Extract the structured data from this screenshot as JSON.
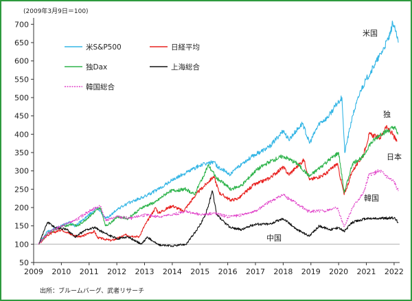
{
  "chart_data": {
    "type": "line",
    "base_note": "(2009年3月9日＝100)",
    "source": "出所：ブルームバーグ、武者リサーチ",
    "x_ticks": [
      "2009",
      "2010",
      "2011",
      "2012",
      "2013",
      "2014",
      "2015",
      "2016",
      "2017",
      "2018",
      "2019",
      "2020",
      "2021",
      "2022"
    ],
    "y_ticks": [
      "50",
      "100",
      "150",
      "200",
      "250",
      "300",
      "350",
      "400",
      "450",
      "500",
      "550",
      "600",
      "650",
      "700"
    ],
    "ylim": [
      50,
      710
    ],
    "xlim": [
      2009.0,
      2022.2
    ],
    "baseline": 100,
    "series": [
      {
        "name": "米S&P500",
        "label": "米国",
        "color": "#33b5e5",
        "dash": false,
        "points": [
          [
            2009.18,
            100
          ],
          [
            2009.5,
            135
          ],
          [
            2010.0,
            150
          ],
          [
            2010.3,
            160
          ],
          [
            2010.5,
            150
          ],
          [
            2011.0,
            180
          ],
          [
            2011.3,
            200
          ],
          [
            2011.6,
            170
          ],
          [
            2011.8,
            180
          ],
          [
            2012.0,
            195
          ],
          [
            2012.5,
            215
          ],
          [
            2013.0,
            230
          ],
          [
            2013.5,
            250
          ],
          [
            2014.0,
            275
          ],
          [
            2014.5,
            295
          ],
          [
            2015.0,
            315
          ],
          [
            2015.5,
            325
          ],
          [
            2015.65,
            310
          ],
          [
            2016.1,
            290
          ],
          [
            2016.5,
            320
          ],
          [
            2017.0,
            345
          ],
          [
            2017.5,
            365
          ],
          [
            2018.0,
            410
          ],
          [
            2018.2,
            385
          ],
          [
            2018.7,
            430
          ],
          [
            2018.95,
            375
          ],
          [
            2019.3,
            430
          ],
          [
            2019.6,
            445
          ],
          [
            2020.0,
            490
          ],
          [
            2020.12,
            500
          ],
          [
            2020.22,
            350
          ],
          [
            2020.5,
            450
          ],
          [
            2020.8,
            520
          ],
          [
            2021.0,
            550
          ],
          [
            2021.3,
            590
          ],
          [
            2021.6,
            630
          ],
          [
            2021.85,
            670
          ],
          [
            2021.95,
            705
          ],
          [
            2022.05,
            680
          ],
          [
            2022.15,
            650
          ]
        ]
      },
      {
        "name": "日経平均",
        "label": "日本",
        "color": "#e8201e",
        "dash": false,
        "points": [
          [
            2009.18,
            100
          ],
          [
            2009.5,
            125
          ],
          [
            2010.0,
            140
          ],
          [
            2010.4,
            125
          ],
          [
            2010.7,
            120
          ],
          [
            2011.0,
            130
          ],
          [
            2011.2,
            135
          ],
          [
            2011.3,
            118
          ],
          [
            2011.8,
            110
          ],
          [
            2012.0,
            115
          ],
          [
            2012.3,
            125
          ],
          [
            2012.8,
            120
          ],
          [
            2013.0,
            150
          ],
          [
            2013.4,
            200
          ],
          [
            2013.5,
            185
          ],
          [
            2014.0,
            205
          ],
          [
            2014.4,
            190
          ],
          [
            2014.9,
            240
          ],
          [
            2015.3,
            270
          ],
          [
            2015.5,
            285
          ],
          [
            2015.7,
            240
          ],
          [
            2016.1,
            220
          ],
          [
            2016.4,
            225
          ],
          [
            2016.9,
            260
          ],
          [
            2017.5,
            280
          ],
          [
            2018.0,
            310
          ],
          [
            2018.2,
            290
          ],
          [
            2018.75,
            330
          ],
          [
            2018.95,
            275
          ],
          [
            2019.5,
            290
          ],
          [
            2019.95,
            320
          ],
          [
            2020.2,
            235
          ],
          [
            2020.5,
            300
          ],
          [
            2020.9,
            345
          ],
          [
            2021.1,
            400
          ],
          [
            2021.5,
            390
          ],
          [
            2021.7,
            420
          ],
          [
            2021.9,
            405
          ],
          [
            2022.1,
            380
          ]
        ]
      },
      {
        "name": "独Dax",
        "label": "独",
        "color": "#2db34a",
        "dash": false,
        "points": [
          [
            2009.18,
            100
          ],
          [
            2009.5,
            130
          ],
          [
            2010.0,
            148
          ],
          [
            2010.4,
            155
          ],
          [
            2010.6,
            150
          ],
          [
            2011.0,
            175
          ],
          [
            2011.4,
            200
          ],
          [
            2011.6,
            150
          ],
          [
            2011.8,
            160
          ],
          [
            2012.0,
            175
          ],
          [
            2012.4,
            170
          ],
          [
            2012.9,
            200
          ],
          [
            2013.4,
            215
          ],
          [
            2013.9,
            245
          ],
          [
            2014.5,
            250
          ],
          [
            2014.8,
            235
          ],
          [
            2015.3,
            315
          ],
          [
            2015.6,
            280
          ],
          [
            2015.8,
            270
          ],
          [
            2016.1,
            250
          ],
          [
            2016.5,
            260
          ],
          [
            2017.0,
            300
          ],
          [
            2017.5,
            325
          ],
          [
            2018.0,
            340
          ],
          [
            2018.5,
            320
          ],
          [
            2018.95,
            285
          ],
          [
            2019.5,
            320
          ],
          [
            2020.0,
            350
          ],
          [
            2020.2,
            240
          ],
          [
            2020.5,
            320
          ],
          [
            2020.9,
            340
          ],
          [
            2021.1,
            370
          ],
          [
            2021.5,
            400
          ],
          [
            2021.8,
            410
          ],
          [
            2022.0,
            420
          ],
          [
            2022.15,
            400
          ]
        ]
      },
      {
        "name": "上海総合",
        "label": "中国",
        "color": "#111111",
        "dash": false,
        "points": [
          [
            2009.18,
            100
          ],
          [
            2009.5,
            160
          ],
          [
            2009.8,
            145
          ],
          [
            2010.2,
            140
          ],
          [
            2010.5,
            120
          ],
          [
            2010.9,
            140
          ],
          [
            2011.2,
            145
          ],
          [
            2011.7,
            125
          ],
          [
            2012.0,
            115
          ],
          [
            2012.4,
            120
          ],
          [
            2012.9,
            100
          ],
          [
            2013.1,
            120
          ],
          [
            2013.5,
            98
          ],
          [
            2014.0,
            95
          ],
          [
            2014.5,
            100
          ],
          [
            2014.9,
            140
          ],
          [
            2015.2,
            180
          ],
          [
            2015.45,
            245
          ],
          [
            2015.6,
            180
          ],
          [
            2015.8,
            165
          ],
          [
            2016.1,
            145
          ],
          [
            2016.5,
            140
          ],
          [
            2017.0,
            155
          ],
          [
            2017.5,
            155
          ],
          [
            2018.0,
            170
          ],
          [
            2018.5,
            140
          ],
          [
            2018.95,
            122
          ],
          [
            2019.3,
            150
          ],
          [
            2019.7,
            140
          ],
          [
            2020.0,
            145
          ],
          [
            2020.2,
            135
          ],
          [
            2020.5,
            160
          ],
          [
            2021.0,
            170
          ],
          [
            2021.5,
            170
          ],
          [
            2022.0,
            172
          ],
          [
            2022.15,
            160
          ]
        ]
      },
      {
        "name": "韓国総合",
        "label": "韓国",
        "color": "#e040c8",
        "dash": true,
        "points": [
          [
            2009.18,
            100
          ],
          [
            2009.5,
            130
          ],
          [
            2010.0,
            150
          ],
          [
            2010.5,
            165
          ],
          [
            2011.0,
            190
          ],
          [
            2011.4,
            205
          ],
          [
            2011.6,
            165
          ],
          [
            2012.0,
            175
          ],
          [
            2012.5,
            170
          ],
          [
            2013.0,
            180
          ],
          [
            2013.5,
            175
          ],
          [
            2014.0,
            180
          ],
          [
            2014.5,
            190
          ],
          [
            2015.0,
            180
          ],
          [
            2015.5,
            185
          ],
          [
            2016.0,
            175
          ],
          [
            2016.5,
            180
          ],
          [
            2017.0,
            190
          ],
          [
            2017.5,
            215
          ],
          [
            2018.0,
            235
          ],
          [
            2018.5,
            210
          ],
          [
            2018.9,
            190
          ],
          [
            2019.5,
            190
          ],
          [
            2019.95,
            200
          ],
          [
            2020.2,
            148
          ],
          [
            2020.5,
            200
          ],
          [
            2020.9,
            240
          ],
          [
            2021.1,
            290
          ],
          [
            2021.5,
            300
          ],
          [
            2021.8,
            280
          ],
          [
            2022.0,
            270
          ],
          [
            2022.15,
            245
          ]
        ]
      }
    ],
    "legend": [
      {
        "text": "米S&P500",
        "color": "#33b5e5",
        "dash": false
      },
      {
        "text": "日経平均",
        "color": "#e8201e",
        "dash": false
      },
      {
        "text": "独Dax",
        "color": "#2db34a",
        "dash": false
      },
      {
        "text": "上海総合",
        "color": "#111111",
        "dash": false
      },
      {
        "text": "韓国総合",
        "color": "#e040c8",
        "dash": true
      }
    ]
  }
}
